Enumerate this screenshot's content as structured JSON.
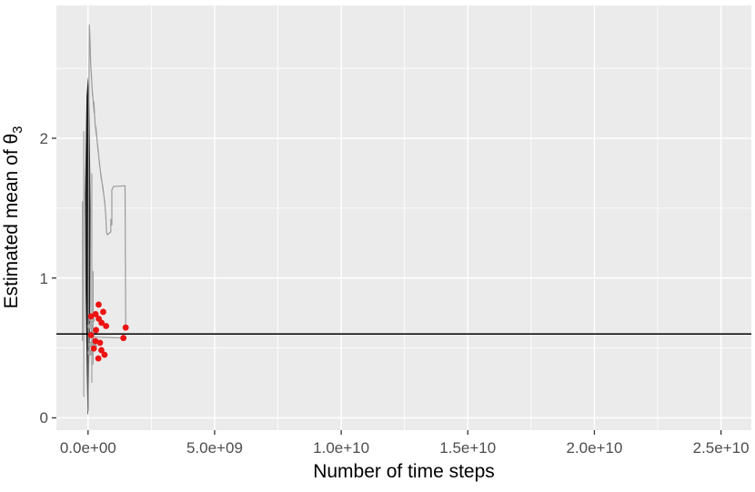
{
  "figure": {
    "x_axis_title": "Number of time steps",
    "y_axis_title_main": "Estimated mean of θ",
    "y_axis_title_sub": "3"
  },
  "chart_data": {
    "type": "line",
    "title": "",
    "xlabel": "Number of time steps",
    "ylabel": "Estimated mean of θ_3",
    "legend": false,
    "grid": true,
    "xlim": [
      -1250000000.0,
      26200000000.0
    ],
    "ylim": [
      -0.088,
      2.95
    ],
    "x_tick_values": [
      0,
      5000000000.0,
      10000000000.0,
      15000000000.0,
      20000000000.0,
      25000000000.0
    ],
    "x_tick_labels": [
      "0.0e+00",
      "5.0e+09",
      "1.0e+10",
      "1.5e+10",
      "2.0e+10",
      "2.5e+10"
    ],
    "x_minor_ticks": [
      2500000000.0,
      7500000000.0,
      12500000000.0,
      17500000000.0,
      22500000000.0
    ],
    "y_tick_values": [
      0,
      1,
      2
    ],
    "y_tick_labels": [
      "0",
      "1",
      "2"
    ],
    "y_minor_ticks": [
      0.5,
      1.5,
      2.5
    ],
    "hline_y": 0.6,
    "band_polygon": [
      [
        -20000000.0,
        0.03
      ],
      [
        -100000000.0,
        0.9
      ],
      [
        -120000000.0,
        1.6
      ],
      [
        -60000000.0,
        2.3
      ],
      [
        0,
        2.44
      ],
      [
        60000000.0,
        2.2
      ],
      [
        100000000.0,
        1.5
      ],
      [
        90000000.0,
        0.8
      ],
      [
        30000000.0,
        0.25
      ],
      [
        0,
        0.02
      ]
    ],
    "band_flank_lines": [
      {
        "x": -170000000.0,
        "y1": 0.15,
        "y2": 2.05
      },
      {
        "x": -220000000.0,
        "y1": 0.55,
        "y2": 1.55
      },
      {
        "x": 150000000.0,
        "y1": 0.25,
        "y2": 1.75
      },
      {
        "x": 200000000.0,
        "y1": 0.38,
        "y2": 1.05
      }
    ],
    "trajectory": [
      [
        10000000.0,
        0.05
      ],
      [
        20000000.0,
        1.2
      ],
      [
        35000000.0,
        2.3
      ],
      [
        50000000.0,
        2.81
      ],
      [
        80000000.0,
        2.7
      ],
      [
        100000000.0,
        2.55
      ],
      [
        140000000.0,
        2.42
      ],
      [
        130000000.0,
        2.46
      ],
      [
        180000000.0,
        2.3
      ],
      [
        170000000.0,
        2.34
      ],
      [
        240000000.0,
        2.18
      ],
      [
        230000000.0,
        2.26
      ],
      [
        280000000.0,
        2.1
      ],
      [
        330000000.0,
        2.02
      ],
      [
        310000000.0,
        2.08
      ],
      [
        400000000.0,
        1.9
      ],
      [
        380000000.0,
        1.95
      ],
      [
        460000000.0,
        1.8
      ],
      [
        440000000.0,
        1.84
      ],
      [
        530000000.0,
        1.7
      ],
      [
        510000000.0,
        1.74
      ],
      [
        600000000.0,
        1.62
      ],
      [
        580000000.0,
        1.66
      ],
      [
        670000000.0,
        1.52
      ],
      [
        650000000.0,
        1.56
      ],
      [
        700000000.0,
        1.45
      ],
      [
        730000000.0,
        1.33
      ],
      [
        760000000.0,
        1.31
      ],
      [
        900000000.0,
        1.33
      ],
      [
        900000000.0,
        1.42
      ],
      [
        940000000.0,
        1.38
      ],
      [
        940000000.0,
        1.63
      ],
      [
        1000000000.0,
        1.655
      ],
      [
        1450000000.0,
        1.66
      ],
      [
        1462000000.0,
        1.66
      ],
      [
        1487000000.0,
        0.68
      ],
      [
        1487000000.0,
        0.646
      ]
    ],
    "grey_segments": [
      [
        [
          100000000.0,
          0.579
        ],
        [
          1397000000.0,
          0.571
        ]
      ],
      [
        [
          155000000.0,
          0.7
        ],
        [
          83000000.0,
          0.655
        ],
        [
          191000000.0,
          0.609
        ],
        [
          119000000.0,
          0.524
        ],
        [
          245000000.0,
          0.511
        ],
        [
          83000000.0,
          0.466
        ]
      ]
    ],
    "grey_points": [
      [
        155000000.0,
        0.7
      ],
      [
        83000000.0,
        0.655
      ],
      [
        191000000.0,
        0.609
      ],
      [
        119000000.0,
        0.524
      ],
      [
        245000000.0,
        0.511
      ],
      [
        83000000.0,
        0.466
      ]
    ],
    "red_points": [
      [
        418000000.0,
        0.81
      ],
      [
        598000000.0,
        0.758
      ],
      [
        299000000.0,
        0.742
      ],
      [
        119000000.0,
        0.726
      ],
      [
        425000000.0,
        0.709
      ],
      [
        533000000.0,
        0.68
      ],
      [
        713000000.0,
        0.657
      ],
      [
        1487000000.0,
        0.646
      ],
      [
        317000000.0,
        0.628
      ],
      [
        119000000.0,
        0.592
      ],
      [
        1397000000.0,
        0.571
      ],
      [
        292000000.0,
        0.549
      ],
      [
        472000000.0,
        0.537
      ],
      [
        227000000.0,
        0.496
      ],
      [
        526000000.0,
        0.484
      ],
      [
        652000000.0,
        0.451
      ],
      [
        407000000.0,
        0.425
      ]
    ],
    "colors": {
      "panel_bg": "#ebebeb",
      "grid": "#ffffff",
      "trajectory": "#9b9b9b",
      "band": "#161616",
      "hline": "#000000",
      "red_point": "#ec1313",
      "grey_point": "#a8a8a8",
      "tick_mark": "#333333",
      "tick_label": "#4d4d4d",
      "axis_title": "#000000"
    }
  }
}
